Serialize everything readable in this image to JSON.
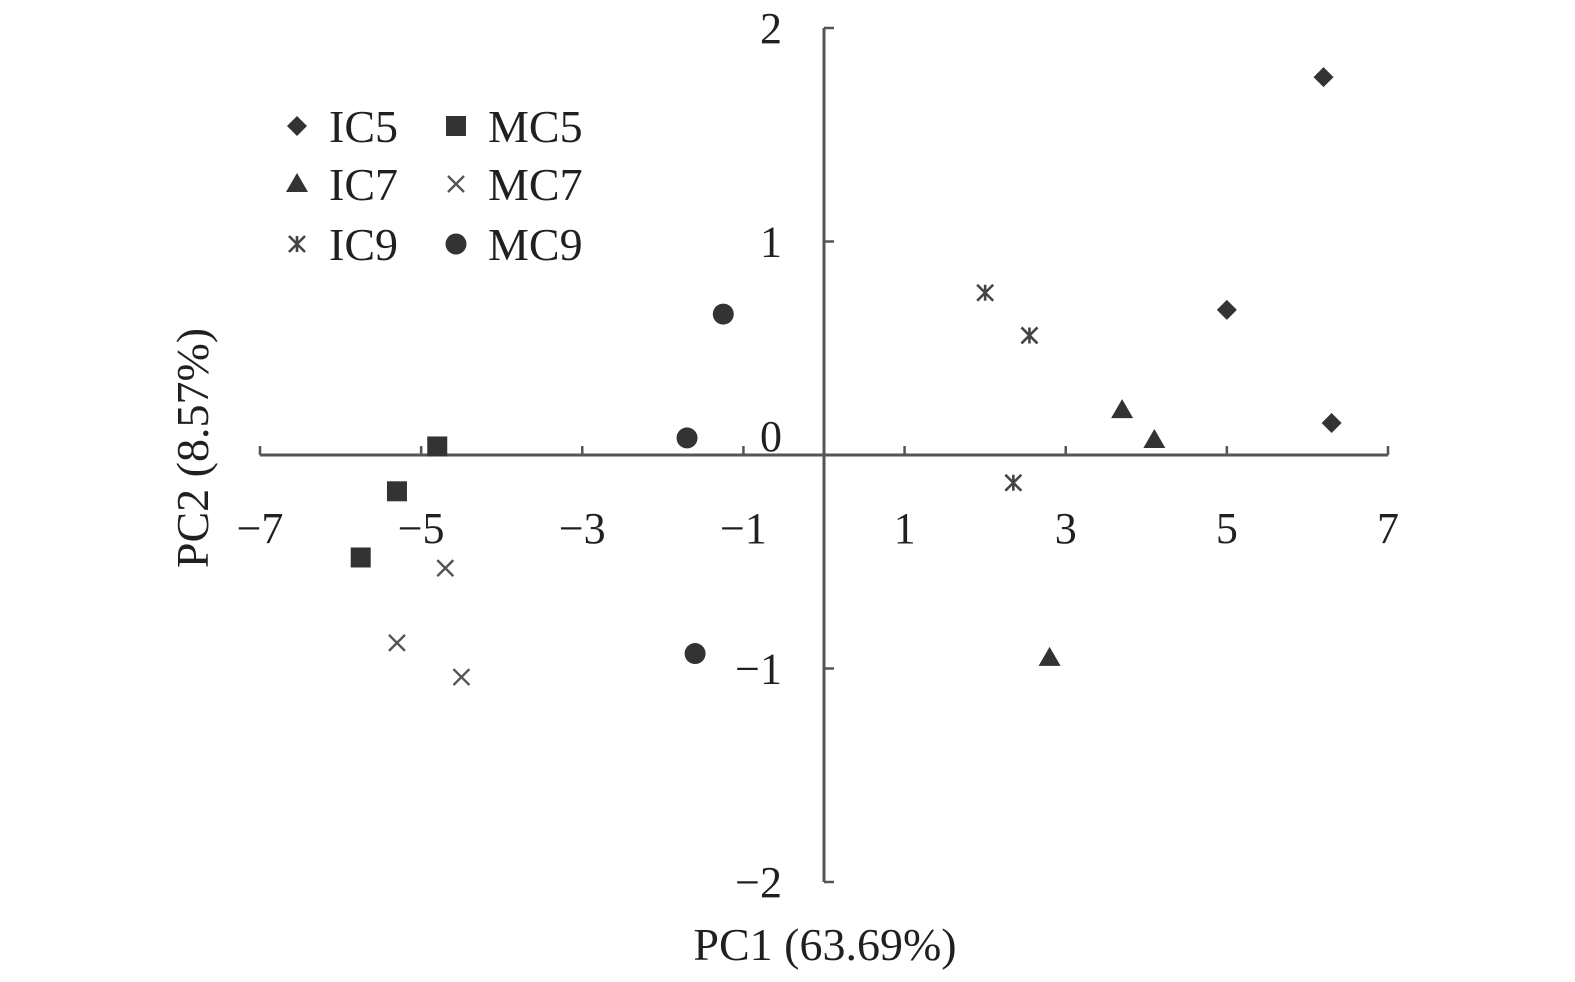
{
  "chart_data": {
    "type": "scatter",
    "title": "",
    "xlabel": "PC1 (63.69%)",
    "ylabel": "PC2 (8.57%)",
    "xlim": [
      -7,
      7
    ],
    "ylim": [
      -2,
      2
    ],
    "x_ticks": [
      -7,
      -5,
      -3,
      -1,
      1,
      3,
      5,
      7
    ],
    "x_tick_labels": [
      "−7",
      "−5",
      "−3",
      "−1",
      "1",
      "3",
      "5",
      "7"
    ],
    "y_ticks": [
      -2,
      -1,
      0,
      1,
      2
    ],
    "y_tick_labels": [
      "−2",
      "−1",
      "0",
      "1",
      "2"
    ],
    "grid": false,
    "legend_position": "top-left",
    "colors": {
      "marker": "#333333",
      "axis": "#555555",
      "text": "#231f20"
    },
    "series": [
      {
        "name": "IC5",
        "marker": "diamond",
        "points": [
          [
            6.2,
            1.77
          ],
          [
            5.0,
            0.68
          ],
          [
            6.3,
            0.15
          ]
        ]
      },
      {
        "name": "IC7",
        "marker": "triangle",
        "points": [
          [
            3.7,
            0.21
          ],
          [
            4.1,
            0.07
          ],
          [
            2.8,
            -0.95
          ]
        ]
      },
      {
        "name": "IC9",
        "marker": "asterisk",
        "points": [
          [
            2.0,
            0.76
          ],
          [
            2.55,
            0.56
          ],
          [
            2.35,
            -0.13
          ]
        ]
      },
      {
        "name": "MC5",
        "marker": "square",
        "points": [
          [
            -4.8,
            0.04
          ],
          [
            -5.3,
            -0.17
          ],
          [
            -5.75,
            -0.48
          ]
        ]
      },
      {
        "name": "MC7",
        "marker": "cross",
        "points": [
          [
            -4.7,
            -0.53
          ],
          [
            -5.3,
            -0.88
          ],
          [
            -4.5,
            -1.04
          ]
        ]
      },
      {
        "name": "MC9",
        "marker": "circle",
        "points": [
          [
            -1.25,
            0.66
          ],
          [
            -1.7,
            0.08
          ],
          [
            -1.6,
            -0.93
          ]
        ]
      }
    ],
    "legend_order": [
      "IC5",
      "MC5",
      "IC7",
      "MC7",
      "IC9",
      "MC9"
    ]
  }
}
